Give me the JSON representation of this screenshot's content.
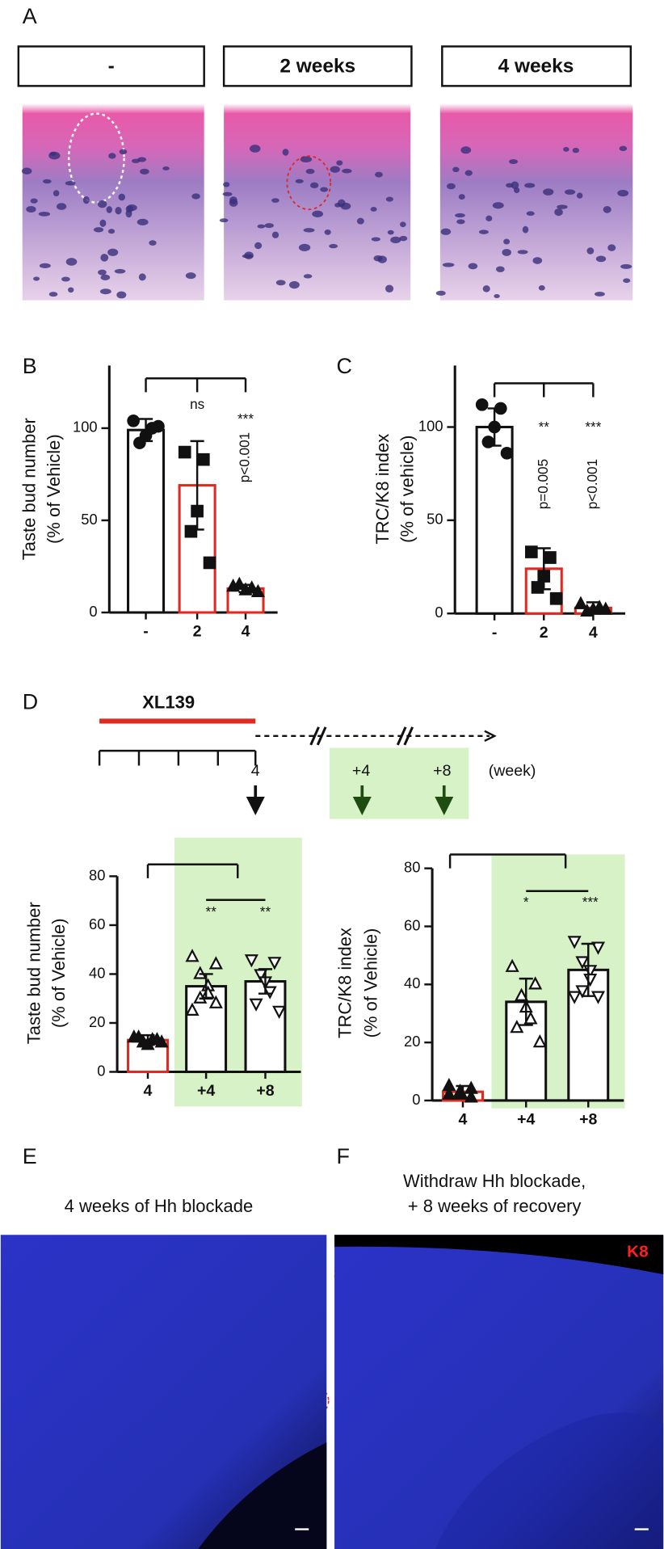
{
  "panel_labels": [
    "A",
    "B",
    "C",
    "D",
    "E",
    "F"
  ],
  "panel_a": {
    "headers": [
      "-",
      "2 weeks",
      "4 weeks"
    ]
  },
  "chart_data": [
    {
      "type": "bar",
      "ylabel": [
        "Taste bud number",
        "(% of Vehicle)"
      ],
      "categories": [
        "-",
        "2",
        "4"
      ],
      "values": [
        99,
        69,
        13
      ],
      "errors": [
        6,
        24,
        2
      ],
      "points": [
        [
          104,
          100,
          96,
          92,
          101
        ],
        [
          87,
          83,
          55,
          44,
          27
        ],
        [
          14,
          13,
          12,
          15,
          11
        ]
      ],
      "edge_colors": [
        "#111111",
        "#e0291f",
        "#e0291f"
      ],
      "markers": [
        "circle",
        "square",
        "triangle"
      ],
      "marker_fill": [
        true,
        true,
        true
      ],
      "ylim": [
        0,
        134
      ],
      "yticks": [
        0,
        50,
        100
      ],
      "annotations": [
        "ns",
        "***",
        "p<0.001"
      ]
    },
    {
      "type": "bar",
      "ylabel": [
        "TRC/K8 index",
        "(% of vehicle)"
      ],
      "categories": [
        "-",
        "2",
        "4"
      ],
      "values": [
        100,
        24,
        3
      ],
      "errors": [
        10,
        11,
        3
      ],
      "points": [
        [
          112,
          110,
          100,
          92,
          86
        ],
        [
          33,
          30,
          20,
          14,
          8
        ],
        [
          5,
          3,
          2,
          1,
          2
        ]
      ],
      "edge_colors": [
        "#111111",
        "#e0291f",
        "#e0291f"
      ],
      "markers": [
        "circle",
        "square",
        "triangle"
      ],
      "marker_fill": [
        true,
        true,
        true
      ],
      "ylim": [
        0,
        133
      ],
      "yticks": [
        0,
        50,
        100
      ],
      "annotations": [
        "**",
        "***",
        "p=0.005",
        "p<0.001"
      ]
    },
    {
      "type": "bar",
      "ylabel": [
        "Taste bud number",
        "(% of Vehicle)"
      ],
      "categories": [
        "4",
        "+4",
        "+8"
      ],
      "values": [
        13,
        35,
        37
      ],
      "errors": [
        2,
        5,
        5
      ],
      "points": [
        [
          14,
          13,
          12,
          11,
          13,
          14,
          12
        ],
        [
          47,
          44,
          40,
          35,
          32,
          30,
          28,
          25
        ],
        [
          46,
          45,
          40,
          37,
          33,
          28,
          25
        ]
      ],
      "edge_colors": [
        "#e0291f",
        "#111111",
        "#111111"
      ],
      "markers": [
        "triangle",
        "triangle",
        "triangle-down"
      ],
      "marker_fill": [
        true,
        false,
        false
      ],
      "ylim": [
        0,
        80
      ],
      "yticks": [
        0,
        20,
        40,
        60,
        80
      ],
      "annotations": [
        "**",
        "**"
      ]
    },
    {
      "type": "bar",
      "ylabel": [
        "TRC/K8 index",
        "(% of Vehicle)"
      ],
      "categories": [
        "4",
        "+4",
        "+8"
      ],
      "values": [
        3,
        34,
        45
      ],
      "errors": [
        2,
        8,
        9
      ],
      "points": [
        [
          5,
          4,
          3,
          2,
          1,
          2
        ],
        [
          46,
          40,
          36,
          32,
          28,
          25,
          20
        ],
        [
          55,
          53,
          48,
          45,
          42,
          38,
          36,
          36
        ]
      ],
      "edge_colors": [
        "#e0291f",
        "#111111",
        "#111111"
      ],
      "markers": [
        "triangle",
        "triangle",
        "triangle-down"
      ],
      "marker_fill": [
        true,
        false,
        false
      ],
      "ylim": [
        0,
        80
      ],
      "yticks": [
        0,
        20,
        40,
        60,
        80
      ],
      "annotations": [
        "*",
        "***"
      ]
    }
  ],
  "timeline": {
    "drug": "XL139",
    "ticks": [
      "4",
      "+4",
      "+8"
    ],
    "unit": "(week)"
  },
  "panel_e": {
    "title": "4 weeks of Hh blockade"
  },
  "panel_f": {
    "title": [
      "Withdraw Hh blockade,",
      "+ 8 weeks of recovery"
    ],
    "label": "K8"
  }
}
